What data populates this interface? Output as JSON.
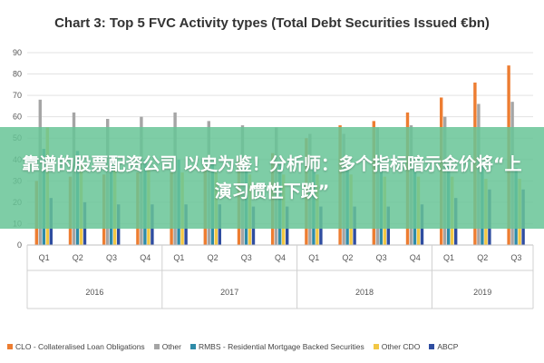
{
  "chart_data": {
    "type": "bar",
    "title": "Chart 3: Top 5 FVC Activity types (Total Debt Securities Issued €bn)",
    "ylim": [
      0,
      90
    ],
    "yticks": [
      0,
      10,
      20,
      30,
      40,
      50,
      60,
      70,
      80,
      90
    ],
    "grid": true,
    "legend_position": "bottom",
    "categories": [
      "Q1",
      "Q2",
      "Q3",
      "Q4",
      "Q1",
      "Q2",
      "Q3",
      "Q4",
      "Q1",
      "Q2",
      "Q3",
      "Q4",
      "Q1",
      "Q2",
      "Q3"
    ],
    "years": [
      {
        "label": "2016",
        "quarters": 4
      },
      {
        "label": "2017",
        "quarters": 4
      },
      {
        "label": "2018",
        "quarters": 4
      },
      {
        "label": "2019",
        "quarters": 3
      }
    ],
    "series": [
      {
        "name": "CLO - Collateralised Loan Obligations",
        "color": "#ED7D31",
        "values": [
          30,
          32,
          33,
          34,
          34,
          37,
          40,
          43,
          50,
          56,
          58,
          62,
          69,
          76,
          84
        ]
      },
      {
        "name": "Other",
        "color": "#A5A5A5",
        "values": [
          68,
          62,
          59,
          60,
          62,
          58,
          56,
          55,
          52,
          52,
          55,
          56,
          60,
          66,
          67
        ]
      },
      {
        "name": "RMBS - Residential Mortgage Backed Securities",
        "color": "#2E8BA8",
        "values": [
          45,
          44,
          40,
          40,
          40,
          39,
          37,
          38,
          36,
          35,
          36,
          36,
          38,
          37,
          36
        ]
      },
      {
        "name": "Other CDO",
        "color": "#F2C744",
        "values": [
          55,
          38,
          36,
          36,
          34,
          34,
          33,
          33,
          33,
          33,
          32,
          32,
          32,
          31,
          31
        ]
      },
      {
        "name": "ABCP",
        "color": "#2F4DA0",
        "values": [
          22,
          20,
          19,
          19,
          19,
          19,
          18,
          18,
          18,
          18,
          18,
          19,
          22,
          26,
          26
        ]
      }
    ]
  },
  "overlay": {
    "text": "靠谱的股票配资公司 以史为鉴！分析师：多个指标暗示金价将“上演习惯性下跌”"
  }
}
